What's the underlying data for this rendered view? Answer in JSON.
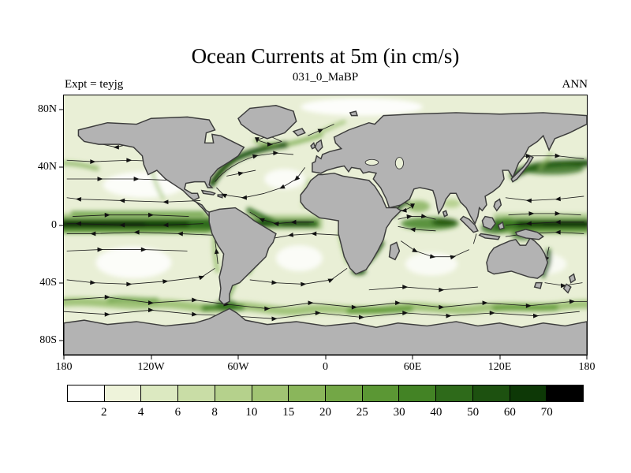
{
  "header": {
    "title": "Ocean Currents at 5m (in cm/s)",
    "subtitle": "031_0_MaBP",
    "experiment_label": "Expt = teyjg",
    "season_label": "ANN"
  },
  "axes": {
    "x_ticks": [
      {
        "lon": -180,
        "label": "180"
      },
      {
        "lon": -120,
        "label": "120W"
      },
      {
        "lon": -60,
        "label": "60W"
      },
      {
        "lon": 0,
        "label": "0"
      },
      {
        "lon": 60,
        "label": "60E"
      },
      {
        "lon": 120,
        "label": "120E"
      },
      {
        "lon": 180,
        "label": "180"
      }
    ],
    "y_ticks": [
      {
        "lat": 80,
        "label": "80N"
      },
      {
        "lat": 40,
        "label": "40N"
      },
      {
        "lat": 0,
        "label": "0"
      },
      {
        "lat": -40,
        "label": "40S"
      },
      {
        "lat": -80,
        "label": "80S"
      }
    ]
  },
  "colorbar": {
    "labels": [
      "2",
      "4",
      "6",
      "8",
      "10",
      "15",
      "20",
      "25",
      "30",
      "40",
      "50",
      "60",
      "70"
    ],
    "colors": [
      "#ffffff",
      "#eef3da",
      "#dce9c1",
      "#c9dda6",
      "#b5d18c",
      "#a1c473",
      "#8ab65b",
      "#73a746",
      "#5b9734",
      "#438325",
      "#2e6a1a",
      "#1d5110",
      "#0d3806",
      "#000000"
    ],
    "units": "cm/s"
  },
  "map": {
    "land_color": "#b3b3b3",
    "coast_color": "#3c3c3c",
    "ocean_base_color": "#e9efd6",
    "streamline_color": "#1a1a1a"
  },
  "chart_data": {
    "type": "heatmap",
    "title": "Ocean Currents at 5m (in cm/s)",
    "subtitle": "031_0_MaBP",
    "experiment": "Expt = teyjg",
    "season": "ANN",
    "projection": "global latitude-longitude world map with gray blocky land mask",
    "x_axis": {
      "tick_labels": [
        "180",
        "120W",
        "60W",
        "0",
        "60E",
        "120E",
        "180"
      ],
      "range": [
        -180,
        180
      ],
      "unit": "degrees longitude"
    },
    "y_axis": {
      "tick_labels": [
        "80N",
        "40N",
        "0",
        "40S",
        "80S"
      ],
      "range": [
        -90,
        90
      ],
      "unit": "degrees latitude"
    },
    "color_scale": {
      "variable": "current speed",
      "unit": "cm/s",
      "levels": [
        2,
        4,
        6,
        8,
        10,
        15,
        20,
        25,
        30,
        40,
        50,
        60,
        70
      ],
      "colors": [
        "#ffffff",
        "#eef3da",
        "#dce9c1",
        "#c9dda6",
        "#b5d18c",
        "#a1c473",
        "#8ab65b",
        "#73a746",
        "#5b9734",
        "#438325",
        "#2e6a1a",
        "#1d5110",
        "#0d3806",
        "#000000"
      ],
      "orientation": "horizontal",
      "position": "bottom"
    },
    "overlays": [
      "current-direction streamlines with arrowheads over the ocean"
    ],
    "visible_speed_maxima": [
      "equatorial Pacific band (darkest, >70 cm/s)",
      "equatorial Atlantic band",
      "Gulf Stream along North American east coast",
      "Kuroshio extension east of Japan",
      "Somali current / equatorial Indian Ocean",
      "Agulhas current south of Africa",
      "Antarctic Circumpolar Current band near 50S"
    ],
    "grid": false
  }
}
